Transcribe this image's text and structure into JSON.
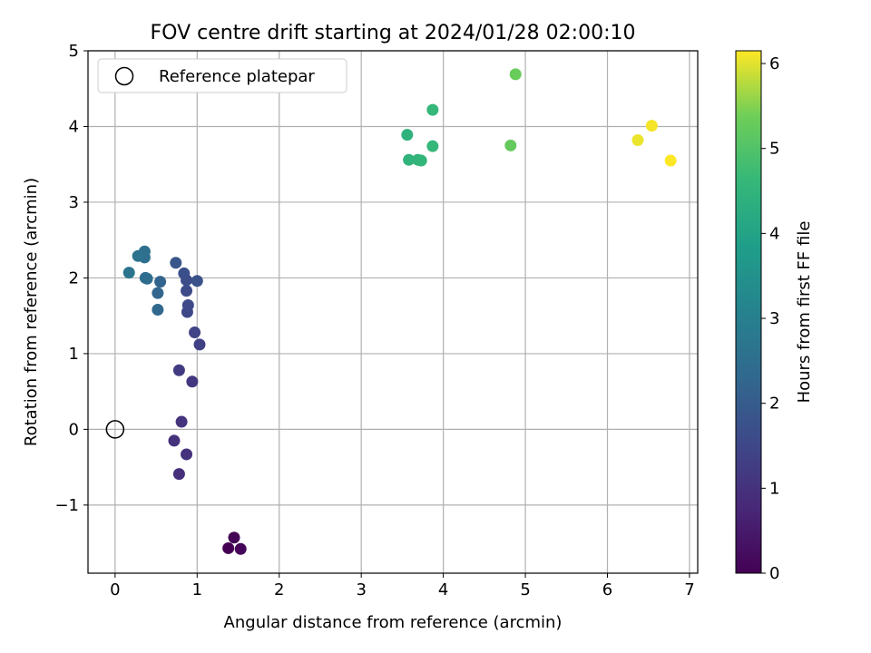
{
  "chart_data": {
    "type": "scatter",
    "title": "FOV centre drift starting at 2024/01/28 02:00:10",
    "xlabel": "Angular distance from reference (arcmin)",
    "ylabel": "Rotation from reference (arcmin)",
    "xlim": [
      -0.33,
      7.1
    ],
    "ylim": [
      -1.9,
      5.0
    ],
    "x_ticks": [
      0,
      1,
      2,
      3,
      4,
      5,
      6,
      7
    ],
    "x_tick_labels": [
      "0",
      "1",
      "2",
      "3",
      "4",
      "5",
      "6",
      "7"
    ],
    "y_ticks": [
      -1,
      0,
      1,
      2,
      3,
      4,
      5
    ],
    "y_tick_labels": [
      "−1",
      "0",
      "1",
      "2",
      "3",
      "4",
      "5"
    ],
    "grid": true,
    "legend": {
      "placement": "top-left",
      "label": "Reference platepar"
    },
    "reference_point": {
      "x": 0,
      "y": 0
    },
    "colorbar": {
      "label": "Hours from first FF file",
      "colormap": "viridis",
      "range": [
        0,
        6.15
      ],
      "ticks": [
        0,
        1,
        2,
        3,
        4,
        5,
        6
      ],
      "tick_labels": [
        "0",
        "1",
        "2",
        "3",
        "4",
        "5",
        "6"
      ]
    },
    "points": [
      {
        "x": 1.38,
        "y": -1.57,
        "c": 0.0
      },
      {
        "x": 1.45,
        "y": -1.43,
        "c": 0.05
      },
      {
        "x": 1.53,
        "y": -1.58,
        "c": 0.1
      },
      {
        "x": 0.78,
        "y": -0.59,
        "c": 0.95
      },
      {
        "x": 0.87,
        "y": -0.33,
        "c": 1.0
      },
      {
        "x": 0.72,
        "y": -0.15,
        "c": 1.0
      },
      {
        "x": 0.81,
        "y": 0.1,
        "c": 1.05
      },
      {
        "x": 0.94,
        "y": 0.63,
        "c": 1.15
      },
      {
        "x": 0.78,
        "y": 0.78,
        "c": 1.2
      },
      {
        "x": 1.03,
        "y": 1.12,
        "c": 1.35
      },
      {
        "x": 0.97,
        "y": 1.28,
        "c": 1.4
      },
      {
        "x": 0.88,
        "y": 1.55,
        "c": 1.5
      },
      {
        "x": 0.89,
        "y": 1.64,
        "c": 1.55
      },
      {
        "x": 0.87,
        "y": 1.83,
        "c": 1.6
      },
      {
        "x": 0.87,
        "y": 1.97,
        "c": 1.65
      },
      {
        "x": 0.84,
        "y": 2.06,
        "c": 1.7
      },
      {
        "x": 1.0,
        "y": 1.96,
        "c": 1.75
      },
      {
        "x": 0.74,
        "y": 2.2,
        "c": 1.85
      },
      {
        "x": 0.55,
        "y": 1.95,
        "c": 2.2
      },
      {
        "x": 0.52,
        "y": 1.8,
        "c": 2.25
      },
      {
        "x": 0.52,
        "y": 1.58,
        "c": 2.3
      },
      {
        "x": 0.37,
        "y": 2.0,
        "c": 2.4
      },
      {
        "x": 0.39,
        "y": 1.99,
        "c": 2.45
      },
      {
        "x": 0.36,
        "y": 2.27,
        "c": 2.5
      },
      {
        "x": 0.36,
        "y": 2.35,
        "c": 2.55
      },
      {
        "x": 0.28,
        "y": 2.29,
        "c": 2.6
      },
      {
        "x": 0.17,
        "y": 2.07,
        "c": 2.65
      },
      {
        "x": 3.56,
        "y": 3.89,
        "c": 4.45
      },
      {
        "x": 3.58,
        "y": 3.56,
        "c": 4.5
      },
      {
        "x": 3.69,
        "y": 3.56,
        "c": 4.5
      },
      {
        "x": 3.73,
        "y": 3.55,
        "c": 4.55
      },
      {
        "x": 3.87,
        "y": 3.74,
        "c": 4.6
      },
      {
        "x": 3.87,
        "y": 4.22,
        "c": 4.6
      },
      {
        "x": 4.82,
        "y": 3.75,
        "c": 5.25
      },
      {
        "x": 4.88,
        "y": 4.69,
        "c": 5.3
      },
      {
        "x": 6.37,
        "y": 3.82,
        "c": 6.05
      },
      {
        "x": 6.54,
        "y": 4.01,
        "c": 6.1
      },
      {
        "x": 6.77,
        "y": 3.55,
        "c": 6.15
      }
    ]
  }
}
